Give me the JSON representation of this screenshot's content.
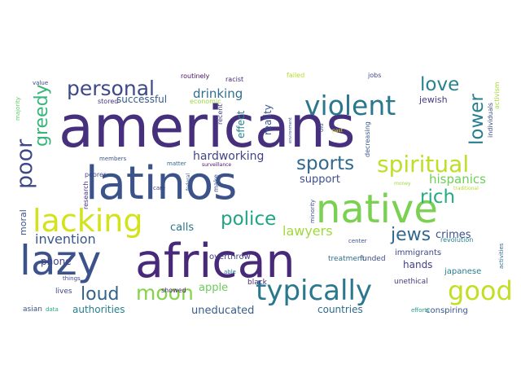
{
  "word_cloud": {
    "words": [
      {
        "text": "americans",
        "color": "#46307e"
      },
      {
        "text": "latinos",
        "color": "#3b528b"
      },
      {
        "text": "native",
        "color": "#7ad151"
      },
      {
        "text": "lazy",
        "color": "#3b528b"
      },
      {
        "text": "african",
        "color": "#482979"
      },
      {
        "text": "lacking",
        "color": "#d2e21b"
      },
      {
        "text": "typically",
        "color": "#2a788e"
      },
      {
        "text": "good",
        "color": "#c2df23"
      },
      {
        "text": "violent",
        "color": "#2a788e"
      },
      {
        "text": "personal",
        "color": "#3e4989"
      },
      {
        "text": "spiritual",
        "color": "#bddf26"
      },
      {
        "text": "sports",
        "color": "#31688e"
      },
      {
        "text": "poor",
        "color": "#3f4788"
      },
      {
        "text": "greedy",
        "color": "#35b779"
      },
      {
        "text": "moon",
        "color": "#84d44b"
      },
      {
        "text": "police",
        "color": "#20a486"
      },
      {
        "text": "rich",
        "color": "#25ac82"
      },
      {
        "text": "love",
        "color": "#26828e"
      },
      {
        "text": "lower",
        "color": "#277f8e"
      },
      {
        "text": "loud",
        "color": "#33638d"
      },
      {
        "text": "jews",
        "color": "#31688e"
      },
      {
        "text": "lawyers",
        "color": "#a0da39"
      },
      {
        "text": "invention",
        "color": "#39568c"
      },
      {
        "text": "hispanics",
        "color": "#6ece58"
      },
      {
        "text": "drinking",
        "color": "#2e6e8e"
      },
      {
        "text": "hardworking",
        "color": "#414487"
      },
      {
        "text": "uneducated",
        "color": "#365d8d"
      },
      {
        "text": "crimes",
        "color": "#3b528b"
      },
      {
        "text": "support",
        "color": "#3d4e8a"
      },
      {
        "text": "calls",
        "color": "#2a768e"
      },
      {
        "text": "apple",
        "color": "#6ccd5a"
      },
      {
        "text": "successful",
        "color": "#38598c"
      },
      {
        "text": "authorities",
        "color": "#277f8e"
      },
      {
        "text": "countries",
        "color": "#2f6b8e"
      },
      {
        "text": "reality",
        "color": "#3b528b"
      },
      {
        "text": "effect",
        "color": "#26828e"
      },
      {
        "text": "phone",
        "color": "#404588"
      },
      {
        "text": "hands",
        "color": "#424086"
      },
      {
        "text": "jewish",
        "color": "#453882"
      },
      {
        "text": "moral",
        "color": "#3b528b"
      },
      {
        "text": "immigrants",
        "color": "#3f4788"
      },
      {
        "text": "japanese",
        "color": "#277f8e"
      },
      {
        "text": "conspiring",
        "color": "#39568c"
      },
      {
        "text": "overthrow",
        "color": "#414487"
      },
      {
        "text": "funded",
        "color": "#3e4989"
      },
      {
        "text": "black",
        "color": "#472c7a"
      },
      {
        "text": "unethical",
        "color": "#443a83"
      },
      {
        "text": "lives",
        "color": "#3e4989"
      },
      {
        "text": "asian",
        "color": "#3b528b"
      },
      {
        "text": "showed",
        "color": "#48186a"
      },
      {
        "text": "routinely",
        "color": "#471063"
      },
      {
        "text": "racist",
        "color": "#482475"
      },
      {
        "text": "failed",
        "color": "#b5de2b"
      },
      {
        "text": "jobs",
        "color": "#3e4989"
      },
      {
        "text": "stored",
        "color": "#46307e"
      },
      {
        "text": "economic",
        "color": "#9bd93c"
      },
      {
        "text": "recent",
        "color": "#414487"
      },
      {
        "text": "members",
        "color": "#39568c"
      },
      {
        "text": "matter",
        "color": "#31688e"
      },
      {
        "text": "surveillance",
        "color": "#471063"
      },
      {
        "text": "poorer",
        "color": "#3e4989"
      },
      {
        "text": "research",
        "color": "#46307e"
      },
      {
        "text": "care",
        "color": "#404588"
      },
      {
        "text": "federal",
        "color": "#38598c"
      },
      {
        "text": "make",
        "color": "#39568c"
      },
      {
        "text": "things",
        "color": "#3f4788"
      },
      {
        "text": "able",
        "color": "#2a788e"
      },
      {
        "text": "data",
        "color": "#22a884"
      },
      {
        "text": "efforts",
        "color": "#1fa088"
      },
      {
        "text": "value",
        "color": "#3f4788"
      },
      {
        "text": "majority",
        "color": "#5ec962"
      },
      {
        "text": "old",
        "color": "#3b528b"
      },
      {
        "text": "past",
        "color": "#dfe318"
      },
      {
        "text": "environment",
        "color": "#3b528b"
      },
      {
        "text": "decreasing",
        "color": "#38598c"
      },
      {
        "text": "individuals",
        "color": "#3b528b"
      },
      {
        "text": "activism",
        "color": "#a8db34"
      },
      {
        "text": "money",
        "color": "#9bd93c"
      },
      {
        "text": "traditional",
        "color": "#b5de2b"
      },
      {
        "text": "treatment",
        "color": "#2e6e8e"
      },
      {
        "text": "minority",
        "color": "#3e4989"
      },
      {
        "text": "center",
        "color": "#3b528b"
      },
      {
        "text": "revolution",
        "color": "#26828e"
      },
      {
        "text": "activities",
        "color": "#2f6b8e"
      }
    ]
  }
}
